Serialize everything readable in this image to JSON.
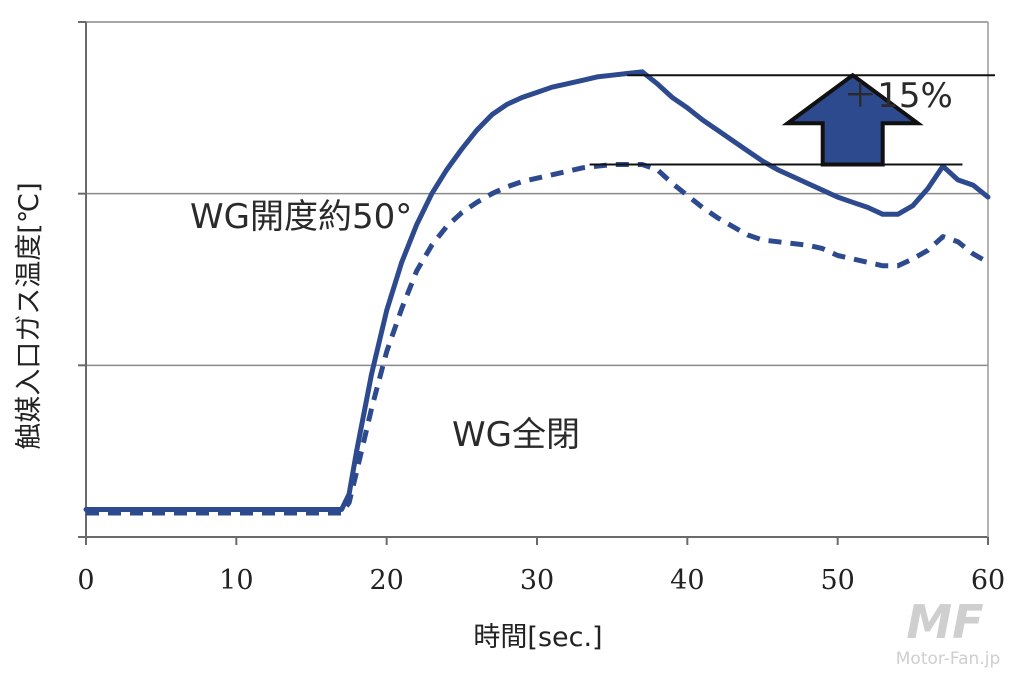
{
  "chart_data": {
    "type": "line",
    "xlabel": "時間[sec.]",
    "ylabel": "触媒入口ガス温度[℃]",
    "xlim": [
      0,
      60
    ],
    "xticks": [
      0,
      10,
      20,
      30,
      40,
      50,
      60
    ],
    "ylim": [
      0,
      3
    ],
    "grid": true,
    "series": [
      {
        "name": "WG開度約50°",
        "style": "solid",
        "color": "#2e4a8e",
        "x": [
          0,
          17,
          17.5,
          18,
          19,
          20,
          21,
          22,
          23,
          24,
          25,
          26,
          27,
          28,
          29,
          30,
          31,
          32,
          33,
          34,
          35,
          36,
          37,
          38,
          39,
          40,
          41,
          42,
          43,
          44,
          45,
          46,
          47,
          48,
          49,
          50,
          51,
          52,
          53,
          54,
          55,
          56,
          57,
          58,
          59,
          60
        ],
        "y": [
          0.16,
          0.16,
          0.25,
          0.5,
          0.95,
          1.32,
          1.6,
          1.82,
          2.0,
          2.14,
          2.26,
          2.37,
          2.46,
          2.52,
          2.56,
          2.59,
          2.62,
          2.64,
          2.66,
          2.68,
          2.69,
          2.7,
          2.71,
          2.64,
          2.56,
          2.5,
          2.43,
          2.37,
          2.31,
          2.25,
          2.19,
          2.14,
          2.1,
          2.06,
          2.02,
          1.98,
          1.95,
          1.92,
          1.88,
          1.88,
          1.93,
          2.03,
          2.16,
          2.08,
          2.05,
          1.98
        ]
      },
      {
        "name": "WG全閉",
        "style": "dashed",
        "color": "#2e4a8e",
        "x": [
          0,
          17,
          17.5,
          18,
          19,
          20,
          21,
          22,
          23,
          24,
          25,
          26,
          27,
          28,
          29,
          30,
          31,
          32,
          33,
          34,
          35,
          36,
          37,
          38,
          39,
          40,
          41,
          42,
          43,
          44,
          45,
          46,
          47,
          48,
          49,
          50,
          51,
          52,
          53,
          54,
          55,
          56,
          57,
          58,
          59,
          60
        ],
        "y": [
          0.14,
          0.14,
          0.2,
          0.38,
          0.75,
          1.08,
          1.33,
          1.55,
          1.7,
          1.81,
          1.89,
          1.95,
          2.0,
          2.04,
          2.07,
          2.09,
          2.11,
          2.13,
          2.15,
          2.16,
          2.17,
          2.17,
          2.17,
          2.14,
          2.06,
          1.99,
          1.92,
          1.86,
          1.81,
          1.76,
          1.73,
          1.72,
          1.71,
          1.7,
          1.68,
          1.64,
          1.62,
          1.6,
          1.58,
          1.58,
          1.62,
          1.67,
          1.75,
          1.72,
          1.65,
          1.6
        ]
      }
    ],
    "annotations": {
      "increase_label": "＋15%",
      "increase_color": "#2e4a8e",
      "ref_line_upper_y": 2.69,
      "ref_line_lower_y": 2.17
    }
  },
  "branding": {
    "logo": "MF",
    "watermark": "Motor-Fan.jp"
  }
}
